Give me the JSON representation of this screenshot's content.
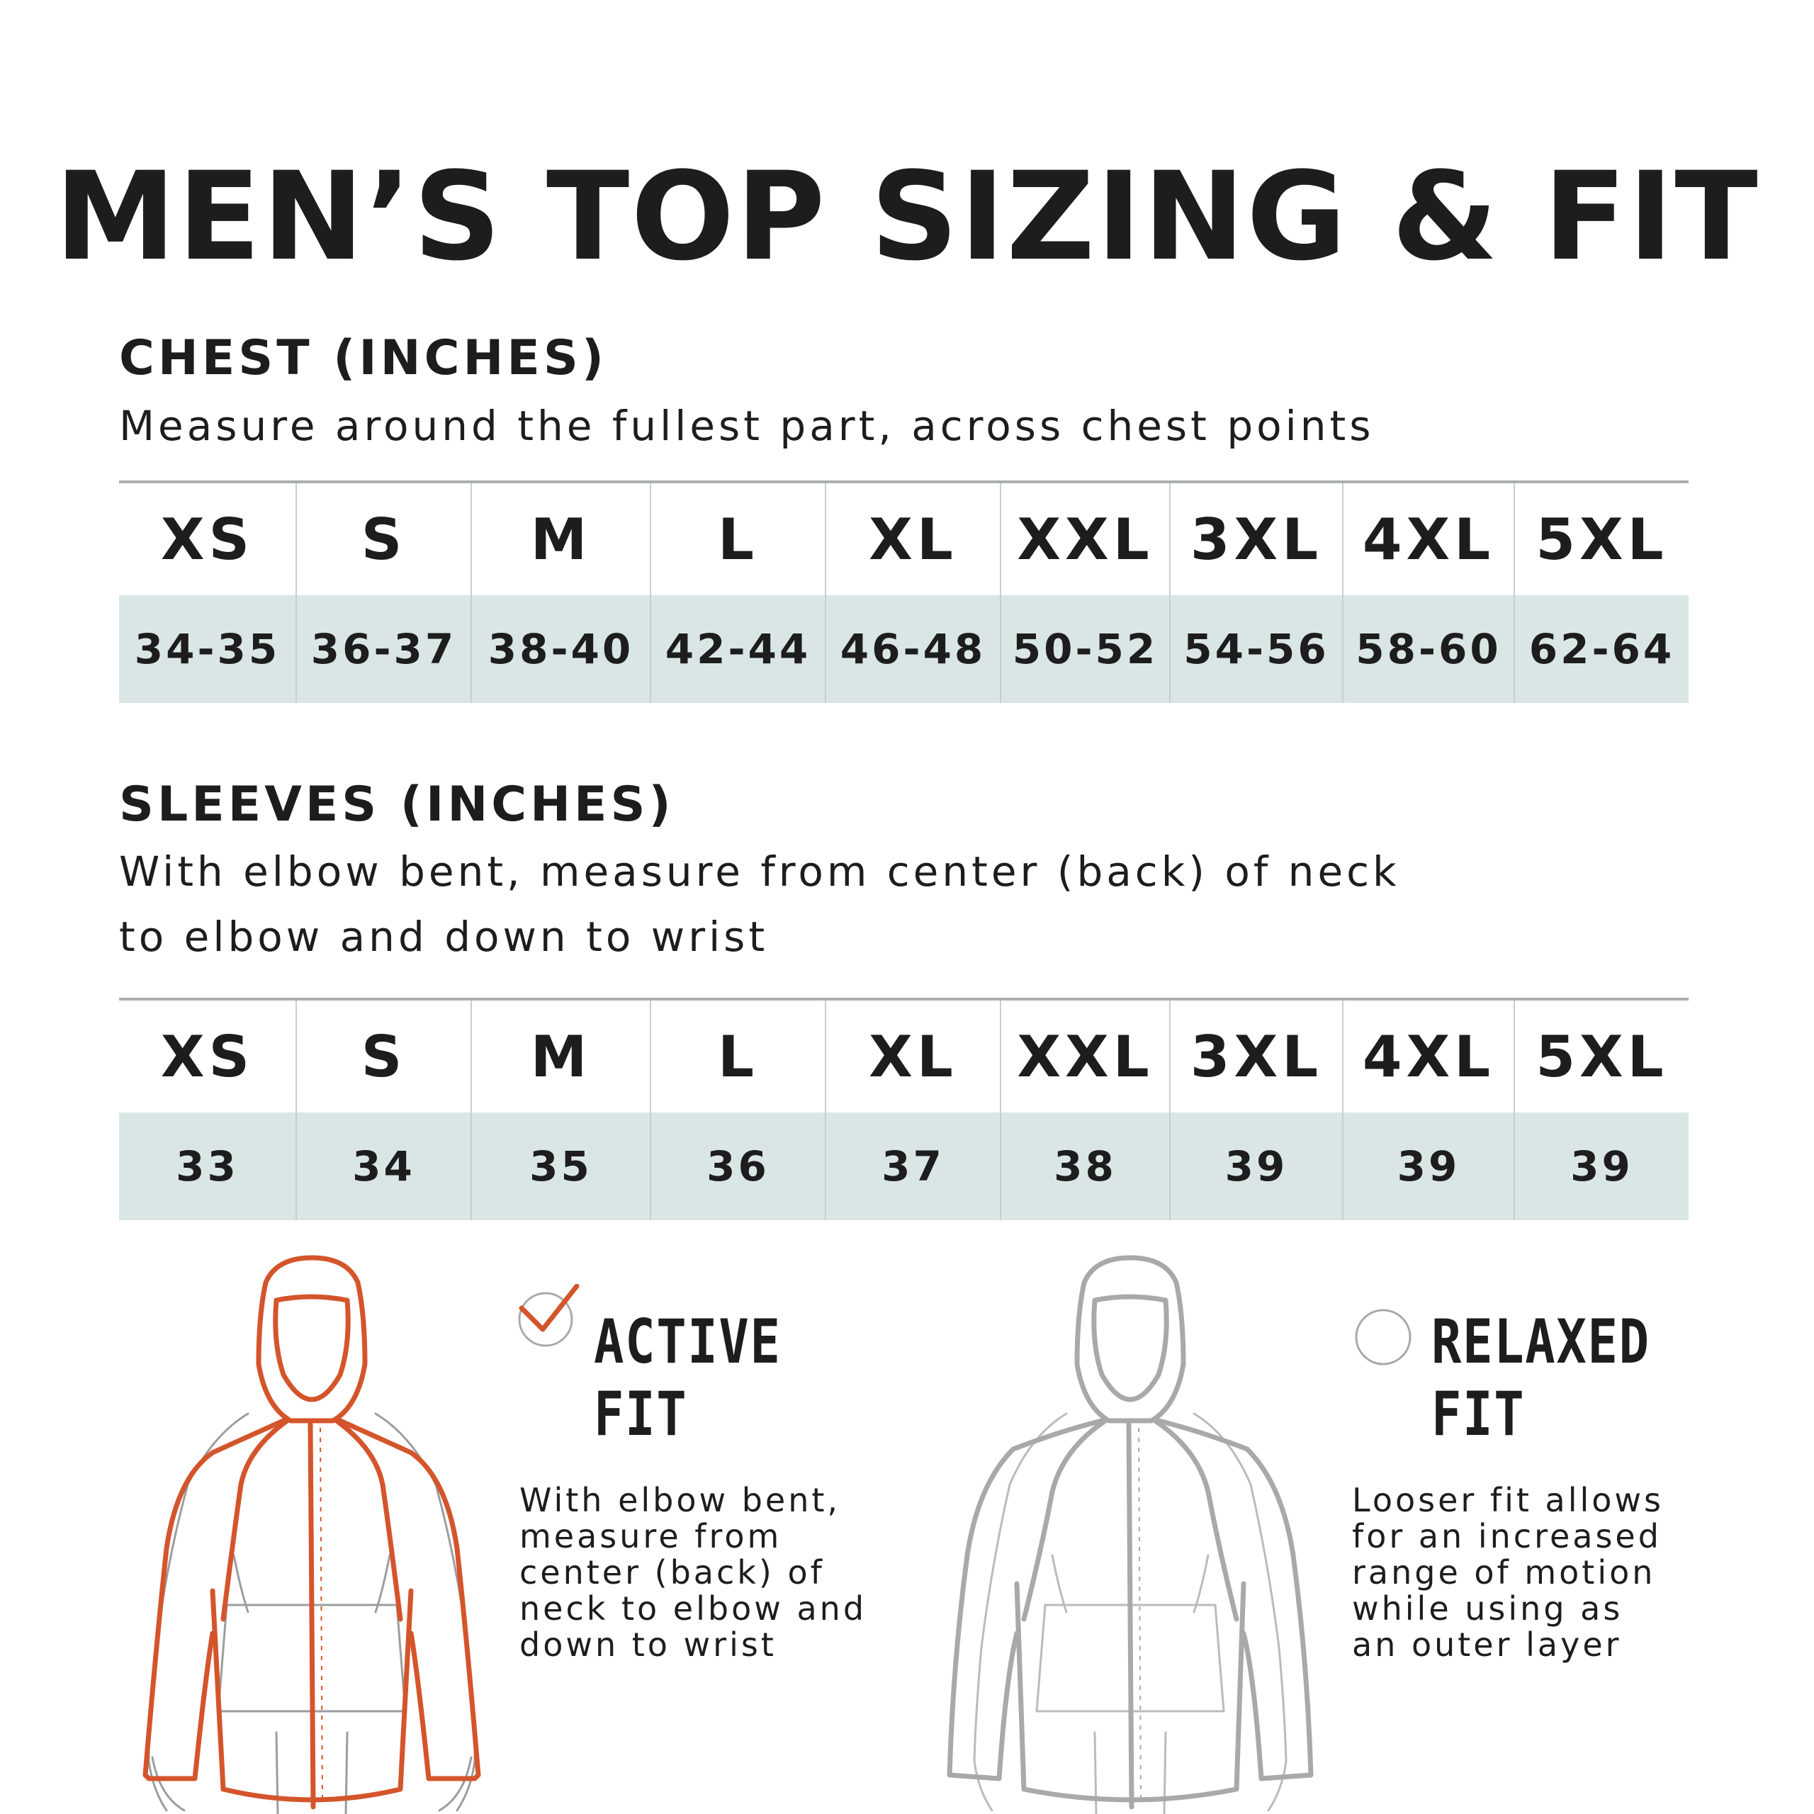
{
  "title": "MEN’S TOP SIZING & FIT",
  "chest": {
    "heading": "CHEST (INCHES)",
    "description": "Measure around the fullest part, across chest points",
    "sizes": [
      "XS",
      "S",
      "M",
      "L",
      "XL",
      "XXL",
      "3XL",
      "4XL",
      "5XL"
    ],
    "values": [
      "34-35",
      "36-37",
      "38-40",
      "42-44",
      "46-48",
      "50-52",
      "54-56",
      "58-60",
      "62-64"
    ]
  },
  "sleeves": {
    "heading": "SLEEVES (INCHES)",
    "description_line1": "With elbow bent, measure from center (back) of neck",
    "description_line2": "to elbow and down to wrist",
    "sizes": [
      "XS",
      "S",
      "M",
      "L",
      "XL",
      "XXL",
      "3XL",
      "4XL",
      "5XL"
    ],
    "values": [
      "33",
      "34",
      "35",
      "36",
      "37",
      "38",
      "39",
      "39",
      "39"
    ]
  },
  "fits": {
    "active": {
      "title_line1": "ACTIVE",
      "title_line2": "FIT",
      "description": "With elbow bent,\nmeasure from\ncenter (back) of\nneck to elbow and\ndown to wrist",
      "selected": true,
      "icon": "checkmark-icon",
      "color": "#d4552b"
    },
    "relaxed": {
      "title_line1": "RELAXED",
      "title_line2": "FIT",
      "description": "Looser fit allows\nfor an increased\nrange of motion\nwhile using as\nan outer layer",
      "selected": false,
      "icon": "empty-circle-icon",
      "color": "#a7a9ab"
    }
  },
  "colors": {
    "text": "#1d1d1d",
    "table_rule": "#a9aeb1",
    "value_row_bg": "#d9e6e5",
    "active_accent": "#d4552b",
    "relaxed_gray": "#a7a9ab"
  }
}
